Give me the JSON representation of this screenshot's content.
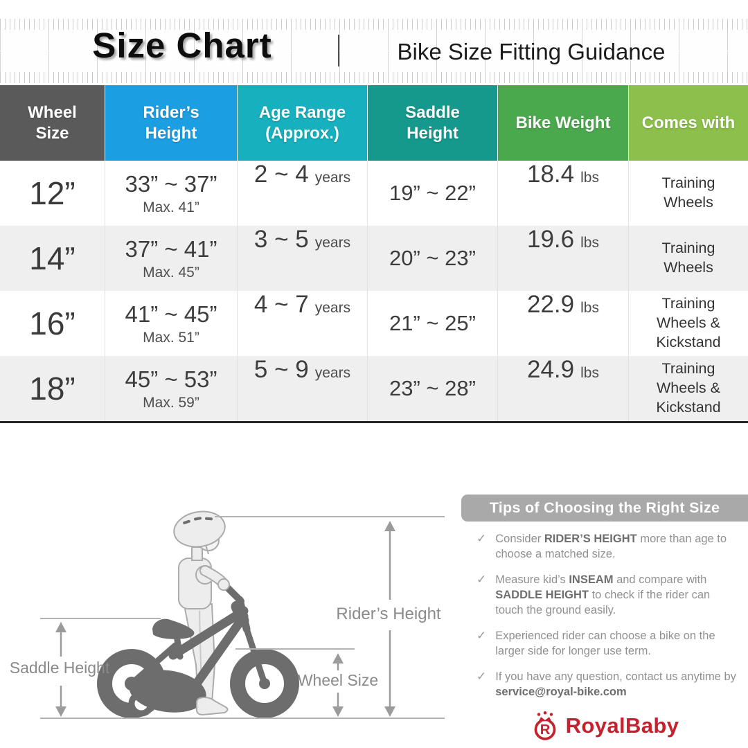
{
  "header": {
    "title": "Size Chart",
    "divider": "|",
    "subtitle": "Bike Size Fitting Guidance"
  },
  "table": {
    "columns": [
      {
        "label": "Wheel Size",
        "color": "#5a5a5a"
      },
      {
        "label": "Rider’s Height",
        "color": "#1c9ee3"
      },
      {
        "label": "Age Range (Approx.)",
        "color": "#16b0bf"
      },
      {
        "label": "Saddle Height",
        "color": "#14998c"
      },
      {
        "label": "Bike Weight",
        "color": "#4ba94d"
      },
      {
        "label": "Comes with",
        "color": "#8cc04b"
      }
    ],
    "rows": [
      {
        "wheel": "12”",
        "height": "33” ~ 37”",
        "height_max": "Max. 41”",
        "age": "2 ~ 4",
        "age_unit": "years",
        "saddle": "19” ~ 22”",
        "weight": "18.4",
        "weight_unit": "lbs",
        "comes_with": "Training Wheels"
      },
      {
        "wheel": "14”",
        "height": "37” ~ 41”",
        "height_max": "Max. 45”",
        "age": "3 ~ 5",
        "age_unit": "years",
        "saddle": "20” ~ 23”",
        "weight": "19.6",
        "weight_unit": "lbs",
        "comes_with": "Training Wheels"
      },
      {
        "wheel": "16”",
        "height": "41” ~ 45”",
        "height_max": "Max. 51”",
        "age": "4 ~ 7",
        "age_unit": "years",
        "saddle": "21” ~ 25”",
        "weight": "22.9",
        "weight_unit": "lbs",
        "comes_with": "Training Wheels & Kickstand"
      },
      {
        "wheel": "18”",
        "height": "45” ~ 53”",
        "height_max": "Max. 59”",
        "age": "5 ~ 9",
        "age_unit": "years",
        "saddle": "23” ~ 28”",
        "weight": "24.9",
        "weight_unit": "lbs",
        "comes_with": "Training Wheels & Kickstand"
      }
    ]
  },
  "diagram": {
    "saddle_label": "Saddle Height",
    "rider_label": "Rider’s Height",
    "wheel_label": "Wheel Size"
  },
  "tips": {
    "title": "Tips of Choosing the Right Size",
    "check": "✓",
    "items": [
      {
        "segments": [
          {
            "t": "Consider ",
            "b": false
          },
          {
            "t": "RIDER’S HEIGHT",
            "b": true
          },
          {
            "t": " more than age to choose a matched size.",
            "b": false
          }
        ]
      },
      {
        "segments": [
          {
            "t": "Measure kid’s ",
            "b": false
          },
          {
            "t": "INSEAM",
            "b": true
          },
          {
            "t": " and compare with ",
            "b": false
          },
          {
            "t": "SADDLE HEIGHT",
            "b": true
          },
          {
            "t": " to check if the rider can touch the ground easily.",
            "b": false
          }
        ]
      },
      {
        "segments": [
          {
            "t": "Experienced rider can choose a bike on the larger side for longer use term.",
            "b": false
          }
        ]
      },
      {
        "segments": [
          {
            "t": "If you have any question, contact us anytime by ",
            "b": false
          },
          {
            "t": "service@royal-bike.com",
            "b": true
          }
        ]
      }
    ]
  },
  "brand": {
    "name": "RoyalBaby",
    "color": "#c4222e"
  },
  "chart_data": {
    "type": "table",
    "title": "Size Chart — Bike Size Fitting Guidance",
    "columns": [
      "Wheel Size",
      "Rider's Height",
      "Age Range (Approx.)",
      "Saddle Height",
      "Bike Weight",
      "Comes with"
    ],
    "rows": [
      [
        "12”",
        "33” ~ 37” (Max. 41”)",
        "2 ~ 4 years",
        "19” ~ 22”",
        "18.4 lbs",
        "Training Wheels"
      ],
      [
        "14”",
        "37” ~ 41” (Max. 45”)",
        "3 ~ 5 years",
        "20” ~ 23”",
        "19.6 lbs",
        "Training Wheels"
      ],
      [
        "16”",
        "41” ~ 45” (Max. 51”)",
        "4 ~ 7 years",
        "21” ~ 25”",
        "22.9 lbs",
        "Training Wheels & Kickstand"
      ],
      [
        "18”",
        "45” ~ 53” (Max. 59”)",
        "5 ~ 9 years",
        "23” ~ 28”",
        "24.9 lbs",
        "Training Wheels & Kickstand"
      ]
    ]
  }
}
